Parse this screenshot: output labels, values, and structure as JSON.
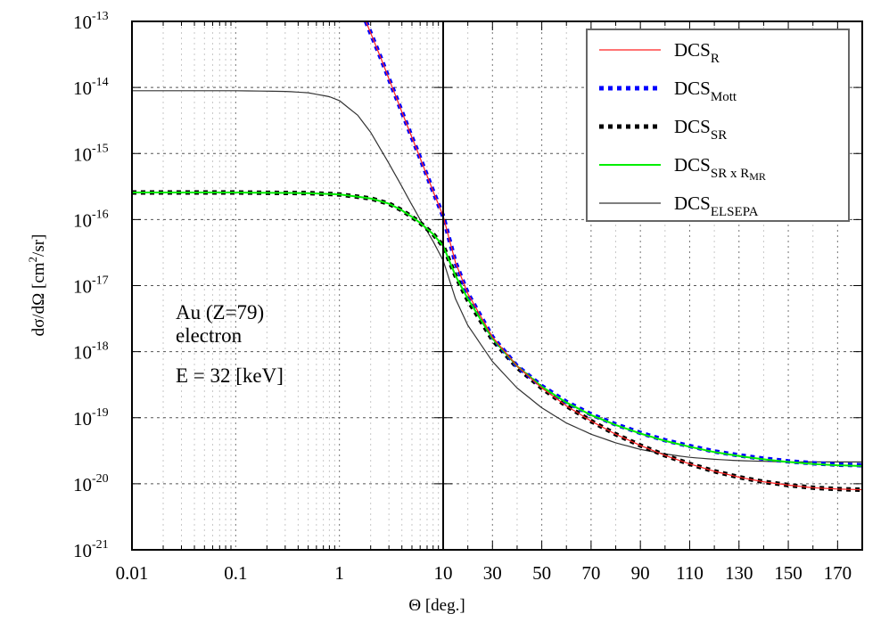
{
  "chart_data": {
    "type": "line",
    "title": "",
    "xlabel": "Θ [deg.]",
    "ylabel": "dσ/dΩ [cm²/sr]",
    "yscale": "log",
    "xscale": "log (0.01–10) + linear (10–180)",
    "ylim": [
      1e-21,
      1e-13
    ],
    "xlim": [
      0.01,
      180
    ],
    "grid": true,
    "legend_position": "upper right",
    "x_ticks_log": [
      {
        "value": 0.01,
        "label": "0.01"
      },
      {
        "value": 0.1,
        "label": "0.1"
      },
      {
        "value": 1,
        "label": "1"
      },
      {
        "value": 10,
        "label": "10"
      }
    ],
    "x_ticks_linear": [
      {
        "value": 30,
        "label": "30"
      },
      {
        "value": 50,
        "label": "50"
      },
      {
        "value": 70,
        "label": "70"
      },
      {
        "value": 90,
        "label": "90"
      },
      {
        "value": 110,
        "label": "110"
      },
      {
        "value": 130,
        "label": "130"
      },
      {
        "value": 150,
        "label": "150"
      },
      {
        "value": 170,
        "label": "170"
      }
    ],
    "y_ticks": [
      {
        "exp": -13,
        "label": "10",
        "sup": "-13"
      },
      {
        "exp": -14,
        "label": "10",
        "sup": "-14"
      },
      {
        "exp": -15,
        "label": "10",
        "sup": "-15"
      },
      {
        "exp": -16,
        "label": "10",
        "sup": "-16"
      },
      {
        "exp": -17,
        "label": "10",
        "sup": "-17"
      },
      {
        "exp": -18,
        "label": "10",
        "sup": "-18"
      },
      {
        "exp": -19,
        "label": "10",
        "sup": "-19"
      },
      {
        "exp": -20,
        "label": "10",
        "sup": "-20"
      },
      {
        "exp": -21,
        "label": "10",
        "sup": "-21"
      }
    ],
    "annotations": [
      "Au (Z=79)",
      "electron",
      "E = 32 [keV]"
    ],
    "series": [
      {
        "name": "DCS_R",
        "label_main": "DCS",
        "label_sub": "R",
        "color": "#ff2020",
        "style": "solid-thin",
        "x": [
          1.8,
          2.5,
          4,
          6,
          8,
          10,
          15,
          20,
          30,
          40,
          50,
          60,
          70,
          80,
          90,
          100,
          110,
          120,
          130,
          140,
          150,
          160,
          170,
          180
        ],
        "log10_y": [
          -13.0,
          -13.55,
          -14.37,
          -15.07,
          -15.57,
          -15.95,
          -16.65,
          -17.12,
          -17.78,
          -18.22,
          -18.55,
          -18.82,
          -19.05,
          -19.25,
          -19.42,
          -19.57,
          -19.7,
          -19.81,
          -19.9,
          -19.97,
          -20.02,
          -20.06,
          -20.08,
          -20.09
        ]
      },
      {
        "name": "DCS_Mott",
        "label_main": "DCS",
        "label_sub": "Mott",
        "color": "#0000ff",
        "style": "dotted-thick",
        "x": [
          1.8,
          2.5,
          4,
          6,
          8,
          10,
          15,
          20,
          30,
          40,
          50,
          60,
          70,
          80,
          90,
          100,
          110,
          120,
          130,
          140,
          150,
          160,
          170,
          180
        ],
        "log10_y": [
          -13.0,
          -13.55,
          -14.37,
          -15.07,
          -15.57,
          -15.95,
          -16.65,
          -17.12,
          -17.78,
          -18.22,
          -18.52,
          -18.76,
          -18.95,
          -19.1,
          -19.23,
          -19.34,
          -19.43,
          -19.51,
          -19.57,
          -19.62,
          -19.66,
          -19.69,
          -19.71,
          -19.72
        ]
      },
      {
        "name": "DCS_SR",
        "label_main": "DCS",
        "label_sub": "SR",
        "color": "#000000",
        "style": "dotted-thick",
        "x": [
          0.01,
          0.1,
          0.5,
          1,
          2,
          3,
          4,
          5,
          6,
          8,
          10,
          15,
          20,
          30,
          40,
          50,
          60,
          70,
          80,
          90,
          100,
          110,
          120,
          130,
          140,
          150,
          160,
          170,
          180
        ],
        "log10_y": [
          -15.59,
          -15.59,
          -15.6,
          -15.62,
          -15.68,
          -15.76,
          -15.86,
          -15.96,
          -16.05,
          -16.22,
          -16.4,
          -16.85,
          -17.22,
          -17.82,
          -18.24,
          -18.55,
          -18.82,
          -19.05,
          -19.25,
          -19.42,
          -19.57,
          -19.7,
          -19.81,
          -19.9,
          -19.97,
          -20.02,
          -20.06,
          -20.08,
          -20.09
        ]
      },
      {
        "name": "DCS_SR x R_MR",
        "label_main": "DCS",
        "label_sub": "SR x R",
        "label_subsub": "MR",
        "color": "#00ee00",
        "style": "solid",
        "x": [
          0.01,
          0.1,
          0.5,
          1,
          2,
          3,
          4,
          5,
          6,
          8,
          10,
          15,
          20,
          30,
          40,
          50,
          60,
          70,
          80,
          90,
          100,
          110,
          120,
          130,
          140,
          150,
          160,
          170,
          180
        ],
        "log10_y": [
          -15.59,
          -15.59,
          -15.6,
          -15.62,
          -15.68,
          -15.76,
          -15.86,
          -15.96,
          -16.05,
          -16.22,
          -16.4,
          -16.85,
          -17.2,
          -17.8,
          -18.22,
          -18.53,
          -18.77,
          -18.96,
          -19.11,
          -19.24,
          -19.35,
          -19.44,
          -19.52,
          -19.58,
          -19.63,
          -19.67,
          -19.7,
          -19.72,
          -19.73
        ]
      },
      {
        "name": "DCS_ELSEPA",
        "label_main": "DCS",
        "label_sub": "ELSEPA",
        "color": "#333333",
        "style": "solid-thin",
        "x": [
          0.01,
          0.1,
          0.3,
          0.5,
          0.8,
          1,
          1.5,
          2,
          3,
          4,
          5,
          6,
          8,
          10,
          15,
          20,
          30,
          40,
          50,
          60,
          70,
          80,
          90,
          100,
          110,
          120,
          130,
          140,
          150,
          160,
          170,
          180
        ],
        "log10_y": [
          -14.05,
          -14.05,
          -14.06,
          -14.08,
          -14.14,
          -14.2,
          -14.42,
          -14.68,
          -15.15,
          -15.5,
          -15.78,
          -16.0,
          -16.33,
          -16.62,
          -17.2,
          -17.6,
          -18.15,
          -18.55,
          -18.85,
          -19.08,
          -19.25,
          -19.38,
          -19.48,
          -19.55,
          -19.6,
          -19.63,
          -19.65,
          -19.66,
          -19.67,
          -19.67,
          -19.67,
          -19.67
        ]
      }
    ]
  }
}
